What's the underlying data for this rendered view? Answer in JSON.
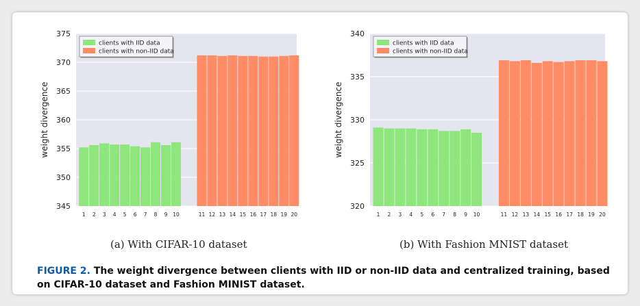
{
  "chart_data": [
    {
      "type": "bar",
      "categories": [
        "1",
        "2",
        "3",
        "4",
        "5",
        "6",
        "7",
        "8",
        "9",
        "10",
        "11",
        "12",
        "13",
        "14",
        "15",
        "16",
        "17",
        "18",
        "19",
        "20"
      ],
      "series": [
        {
          "name": "clients with IID data",
          "color": "#8ee67c",
          "values": [
            355.2,
            355.6,
            355.9,
            355.7,
            355.7,
            355.4,
            355.2,
            356.1,
            355.6,
            356.1,
            null,
            null,
            null,
            null,
            null,
            null,
            null,
            null,
            null,
            null
          ]
        },
        {
          "name": "clients with non-IID data",
          "color": "#ff8c64",
          "values": [
            null,
            null,
            null,
            null,
            null,
            null,
            null,
            null,
            null,
            null,
            371.2,
            371.2,
            371.1,
            371.2,
            371.1,
            371.1,
            371.0,
            371.0,
            371.1,
            371.2
          ]
        }
      ],
      "ylabel": "weight divergence",
      "ylim": [
        345,
        375
      ],
      "yticks": [
        345,
        350,
        355,
        360,
        365,
        370,
        375
      ],
      "legend_position": "top-left",
      "grid": true
    },
    {
      "type": "bar",
      "categories": [
        "1",
        "2",
        "3",
        "4",
        "5",
        "6",
        "7",
        "8",
        "9",
        "10",
        "11",
        "12",
        "13",
        "14",
        "15",
        "16",
        "17",
        "18",
        "19",
        "20"
      ],
      "series": [
        {
          "name": "clients with IID data",
          "color": "#8ee67c",
          "values": [
            329.1,
            329.0,
            329.0,
            329.0,
            328.9,
            328.9,
            328.7,
            328.7,
            328.9,
            328.5,
            null,
            null,
            null,
            null,
            null,
            null,
            null,
            null,
            null,
            null
          ]
        },
        {
          "name": "clients with non-IID data",
          "color": "#ff8c64",
          "values": [
            null,
            null,
            null,
            null,
            null,
            null,
            null,
            null,
            null,
            null,
            336.9,
            336.8,
            336.9,
            336.6,
            336.8,
            336.7,
            336.8,
            336.9,
            336.9,
            336.8
          ]
        }
      ],
      "ylabel": "weight divergence",
      "ylim": [
        320,
        340
      ],
      "yticks": [
        320,
        325,
        330,
        335,
        340
      ],
      "legend_position": "top-left",
      "grid": true
    }
  ],
  "subcaptions": {
    "a": "(a)  With CIFAR-10 dataset",
    "b": "(b)  With Fashion MNIST dataset"
  },
  "caption": {
    "figure_label": "FIGURE 2.",
    "text": "The weight divergence between clients with IID or non-IID data and centralized training, based on CIFAR-10 dataset and Fashion MINIST dataset."
  }
}
